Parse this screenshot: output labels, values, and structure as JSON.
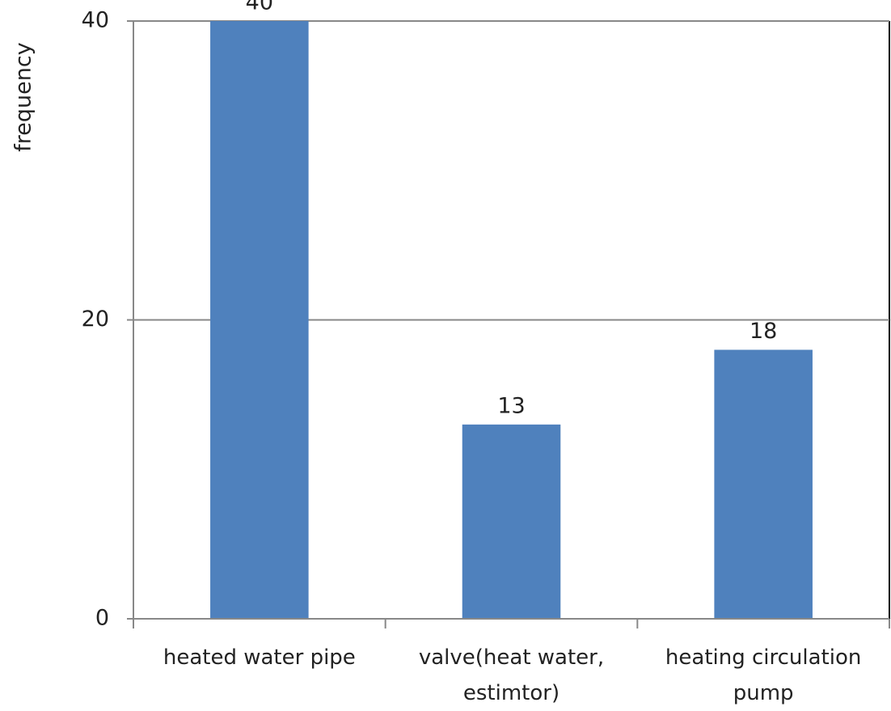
{
  "chart_data": {
    "type": "bar",
    "y_label": "frequency",
    "categories": [
      "heated water pipe",
      "valve(heat water, estimtor)",
      "heating circulation pump"
    ],
    "values": [
      40,
      13,
      18
    ],
    "color": "#4f81bd",
    "ylim": [
      0,
      40
    ],
    "yticks": [
      0,
      20,
      40
    ],
    "grid": true
  }
}
